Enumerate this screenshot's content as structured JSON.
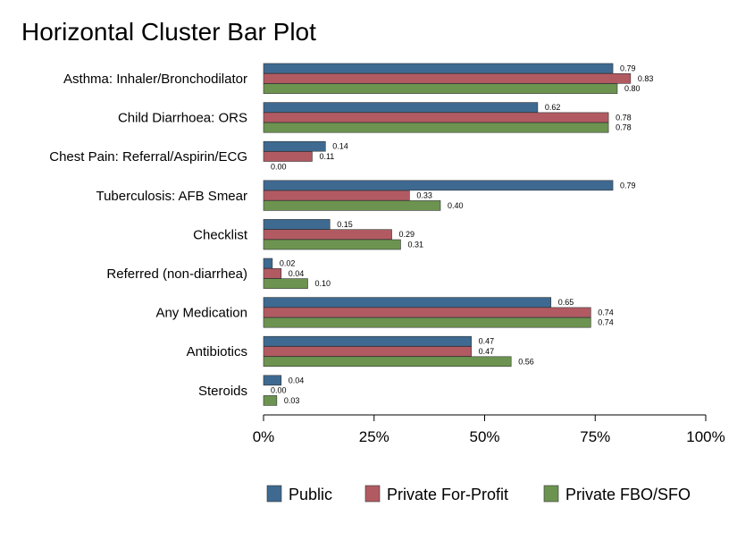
{
  "chart_data": {
    "type": "bar",
    "orientation": "horizontal",
    "title": "Horizontal Cluster Bar Plot",
    "xlabel": "",
    "ylabel": "",
    "xlim": [
      0,
      100
    ],
    "x_ticks": [
      "0%",
      "25%",
      "50%",
      "75%",
      "100%"
    ],
    "grid": false,
    "legend_position": "bottom",
    "categories": [
      "Asthma: Inhaler/Bronchodilator",
      "Child Diarrhoea: ORS",
      "Chest Pain: Referral/Aspirin/ECG",
      "Tuberculosis: AFB Smear",
      "Checklist",
      "Referred (non-diarrhea)",
      "Any Medication",
      "Antibiotics",
      "Steroids"
    ],
    "series": [
      {
        "name": "Public",
        "color": "#3e6a91",
        "values": [
          0.79,
          0.62,
          0.14,
          0.79,
          0.15,
          0.02,
          0.65,
          0.47,
          0.04
        ],
        "labels": [
          "0.79",
          "0.62",
          "0.14",
          "0.79",
          "0.15",
          "0.02",
          "0.65",
          "0.47",
          "0.04"
        ]
      },
      {
        "name": "Private For-Profit",
        "color": "#b25a62",
        "values": [
          0.83,
          0.78,
          0.11,
          0.33,
          0.29,
          0.04,
          0.74,
          0.47,
          0.0
        ],
        "labels": [
          "0.83",
          "0.78",
          "0.11",
          "0.33",
          "0.29",
          "0.04",
          "0.74",
          "0.47",
          "0.00"
        ]
      },
      {
        "name": "Private FBO/SFO",
        "color": "#6c9450",
        "values": [
          0.8,
          0.78,
          0.0,
          0.4,
          0.31,
          0.1,
          0.74,
          0.56,
          0.03
        ],
        "labels": [
          "0.80",
          "0.78",
          "0.00",
          "0.40",
          "0.31",
          "0.10",
          "0.74",
          "0.56",
          "0.03"
        ]
      }
    ]
  }
}
